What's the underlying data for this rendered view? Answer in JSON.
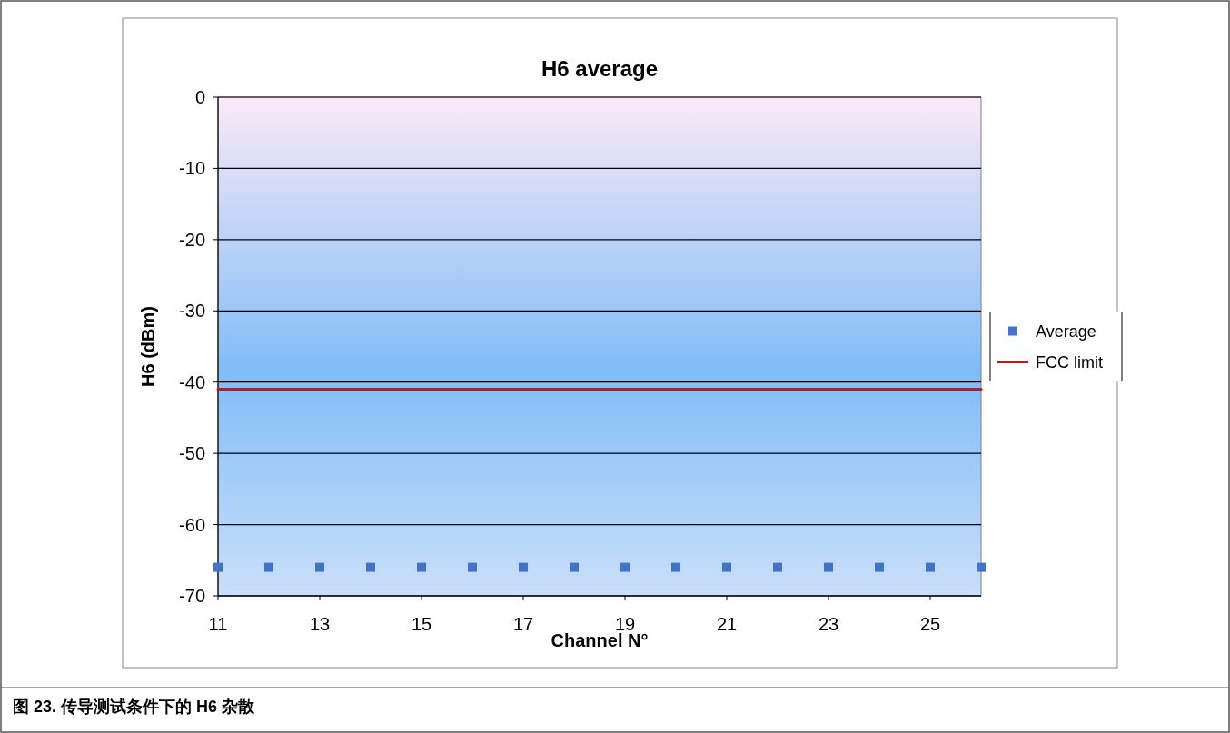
{
  "chart_data": {
    "type": "scatter",
    "title": "H6 average",
    "xlabel": "Channel N°",
    "ylabel": "H6 (dBm)",
    "annotations": [
      "图 23. 传导测试条件下的 H6 杂散"
    ],
    "x": [
      11,
      12,
      13,
      14,
      15,
      16,
      17,
      18,
      19,
      20,
      21,
      22,
      23,
      24,
      25,
      26
    ],
    "series": [
      {
        "name": "Average",
        "color": "#4472c4",
        "marker": "square",
        "values": [
          -66,
          -66,
          -66,
          -66,
          -66,
          -66,
          -66,
          -66,
          -66,
          -66,
          -66,
          -66,
          -66,
          -66,
          -66,
          -66
        ]
      },
      {
        "name": "FCC limit",
        "color": "#ff0000",
        "type": "line",
        "line_style": "solid",
        "marker": "none",
        "x": [
          11,
          26
        ],
        "values": [
          -41,
          -41
        ]
      }
    ],
    "xlim": [
      11,
      26
    ],
    "ylim": [
      -70,
      0
    ],
    "xticks": [
      11,
      13,
      15,
      17,
      19,
      21,
      23,
      25
    ],
    "yticks": [
      0,
      -10,
      -20,
      -30,
      -40,
      -50,
      -60,
      -70
    ],
    "grid": "y",
    "legend": "right"
  }
}
